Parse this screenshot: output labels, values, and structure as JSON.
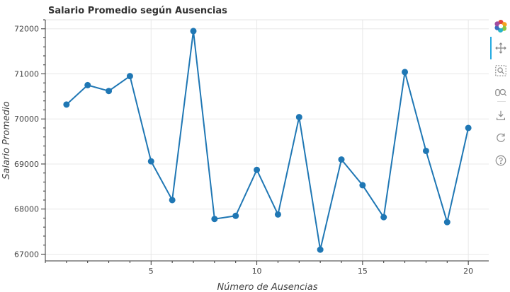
{
  "chart_data": {
    "type": "line",
    "title": "Salario Promedio según Ausencias",
    "xlabel": "Número de Ausencias",
    "ylabel": "Salario Promedio",
    "xlim": [
      0,
      21
    ],
    "ylim": [
      66850,
      72200
    ],
    "x_ticks": [
      5,
      10,
      15,
      20
    ],
    "y_ticks": [
      67000,
      68000,
      69000,
      70000,
      71000,
      72000
    ],
    "grid": true,
    "legend": "none",
    "series": [
      {
        "color": "#1f77b4",
        "x": [
          1,
          2,
          3,
          4,
          5,
          6,
          7,
          8,
          9,
          10,
          11,
          12,
          13,
          14,
          15,
          16,
          17,
          18,
          19,
          20
        ],
        "y": [
          70320,
          70750,
          70620,
          70950,
          69060,
          68200,
          71950,
          67780,
          67850,
          68870,
          67880,
          70040,
          67100,
          69100,
          68530,
          67820,
          71040,
          69290,
          67710,
          69800
        ]
      }
    ]
  },
  "toolbar": {
    "tools": [
      "bokeh-logo-icon",
      "pan-icon",
      "box-zoom-icon",
      "wheel-zoom-icon",
      "save-icon",
      "reset-icon",
      "help-icon"
    ]
  }
}
